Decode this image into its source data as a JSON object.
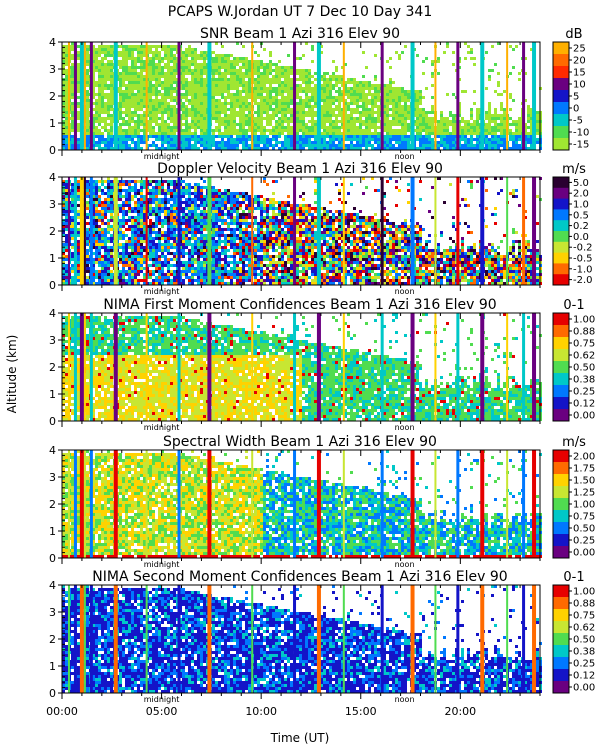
{
  "figure": {
    "title": "PCAPS W.Jordan UT   7 Dec 10 Day 341",
    "ylabel": "Altitude (km)",
    "xlabel": "Time (UT)",
    "x_ticks": [
      "00:00",
      "05:00",
      "10:00",
      "15:00",
      "20:00"
    ],
    "markers": {
      "midnight": "midnight",
      "noon": "noon"
    }
  },
  "chart_data": [
    {
      "type": "heatmap",
      "title": "SNR Beam 1 Azi 316 Elev 90",
      "unit": "dB",
      "xlim": [
        0,
        24
      ],
      "ylim": [
        0,
        4
      ],
      "y_ticks": [
        "0",
        "1",
        "2",
        "3",
        "4"
      ],
      "colorbar": {
        "labels": [
          "25",
          "20",
          "15",
          "10",
          "5",
          "0",
          "-5",
          "-10",
          "-15"
        ],
        "colors": [
          "#ffb000",
          "#ff6a00",
          "#ff2a00",
          "#6a0080",
          "#1414c8",
          "#0078ff",
          "#00c8c8",
          "#50dc50",
          "#a0e632"
        ]
      }
    },
    {
      "type": "heatmap",
      "title": "Doppler Velocity Beam 1 Azi 316 Elev 90",
      "unit": "m/s",
      "xlim": [
        0,
        24
      ],
      "ylim": [
        0,
        4
      ],
      "y_ticks": [
        "0",
        "1",
        "2",
        "3",
        "4"
      ],
      "colorbar": {
        "labels": [
          "5.0",
          "2.0",
          "1.0",
          "0.5",
          "0.2",
          "0.0",
          "-0.2",
          "-0.5",
          "-1.0",
          "-2.0"
        ],
        "colors": [
          "#2a0030",
          "#6a0080",
          "#1414c8",
          "#0078ff",
          "#00c8c8",
          "#50dc50",
          "#c8e632",
          "#ffd200",
          "#ff6a00",
          "#e60000"
        ]
      }
    },
    {
      "type": "heatmap",
      "title": "NIMA First Moment Confidences Beam 1 Azi 316 Elev 90",
      "unit": "0-1",
      "xlim": [
        0,
        24
      ],
      "ylim": [
        0,
        4
      ],
      "y_ticks": [
        "0",
        "1",
        "2",
        "3",
        "4"
      ],
      "colorbar": {
        "labels": [
          "1.00",
          "0.88",
          "0.75",
          "0.62",
          "0.50",
          "0.38",
          "0.25",
          "0.12",
          "0.00"
        ],
        "colors": [
          "#e60000",
          "#ff6a00",
          "#ffd200",
          "#c8e632",
          "#50dc50",
          "#00c8c8",
          "#0078ff",
          "#1414c8",
          "#6a0080"
        ]
      }
    },
    {
      "type": "heatmap",
      "title": "Spectral Width Beam 1 Azi 316 Elev 90",
      "unit": "m/s",
      "xlim": [
        0,
        24
      ],
      "ylim": [
        0,
        4
      ],
      "y_ticks": [
        "0",
        "1",
        "2",
        "3",
        "4"
      ],
      "colorbar": {
        "labels": [
          "2.00",
          "1.75",
          "1.50",
          "1.25",
          "1.00",
          "0.75",
          "0.50",
          "0.25",
          "0.00"
        ],
        "colors": [
          "#e60000",
          "#ff6a00",
          "#ffd200",
          "#c8e632",
          "#50dc50",
          "#00c8c8",
          "#0078ff",
          "#1414c8",
          "#6a0080"
        ]
      }
    },
    {
      "type": "heatmap",
      "title": "NIMA Second Moment Confidences Beam 1 Azi 316 Elev 90",
      "unit": "0-1",
      "xlim": [
        0,
        24
      ],
      "ylim": [
        0,
        4
      ],
      "y_ticks": [
        "0",
        "1",
        "2",
        "3",
        "4"
      ],
      "colorbar": {
        "labels": [
          "1.00",
          "0.88",
          "0.75",
          "0.62",
          "0.50",
          "0.38",
          "0.25",
          "0.12",
          "0.00"
        ],
        "colors": [
          "#e60000",
          "#ff6a00",
          "#ffd200",
          "#c8e632",
          "#50dc50",
          "#00c8c8",
          "#0078ff",
          "#1414c8",
          "#6a0080"
        ]
      }
    }
  ]
}
